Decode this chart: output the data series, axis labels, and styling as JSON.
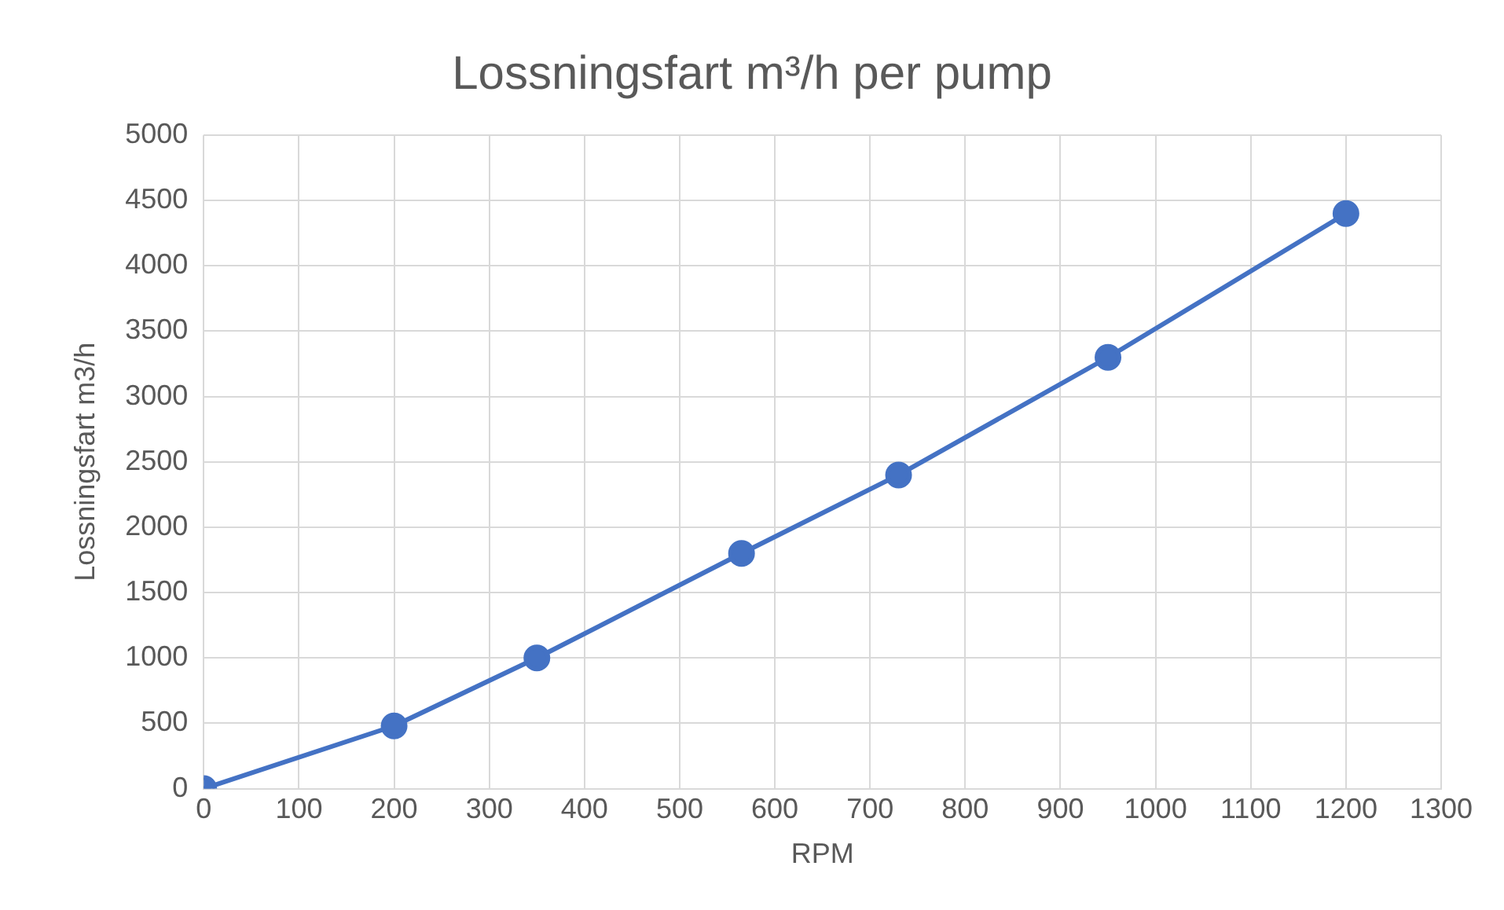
{
  "chart_data": {
    "type": "line",
    "title": "Lossningsfart m³/h per pump",
    "xlabel": "RPM",
    "ylabel": "Lossningsfart m3/h",
    "x": [
      0,
      200,
      350,
      565,
      730,
      950,
      1200
    ],
    "series": [
      {
        "color": "#4472c4",
        "values": [
          0,
          480,
          1000,
          1800,
          2400,
          3300,
          4400
        ]
      }
    ],
    "xlim": [
      0,
      1300
    ],
    "xticks": [
      0,
      100,
      200,
      300,
      400,
      500,
      600,
      700,
      800,
      900,
      1000,
      1100,
      1200,
      1300
    ],
    "ylim": [
      0,
      5000
    ],
    "yticks": [
      0,
      500,
      1000,
      1500,
      2000,
      2500,
      3000,
      3500,
      4000,
      4500,
      5000
    ],
    "grid": true,
    "marker": "circle",
    "line_style": "solid"
  }
}
